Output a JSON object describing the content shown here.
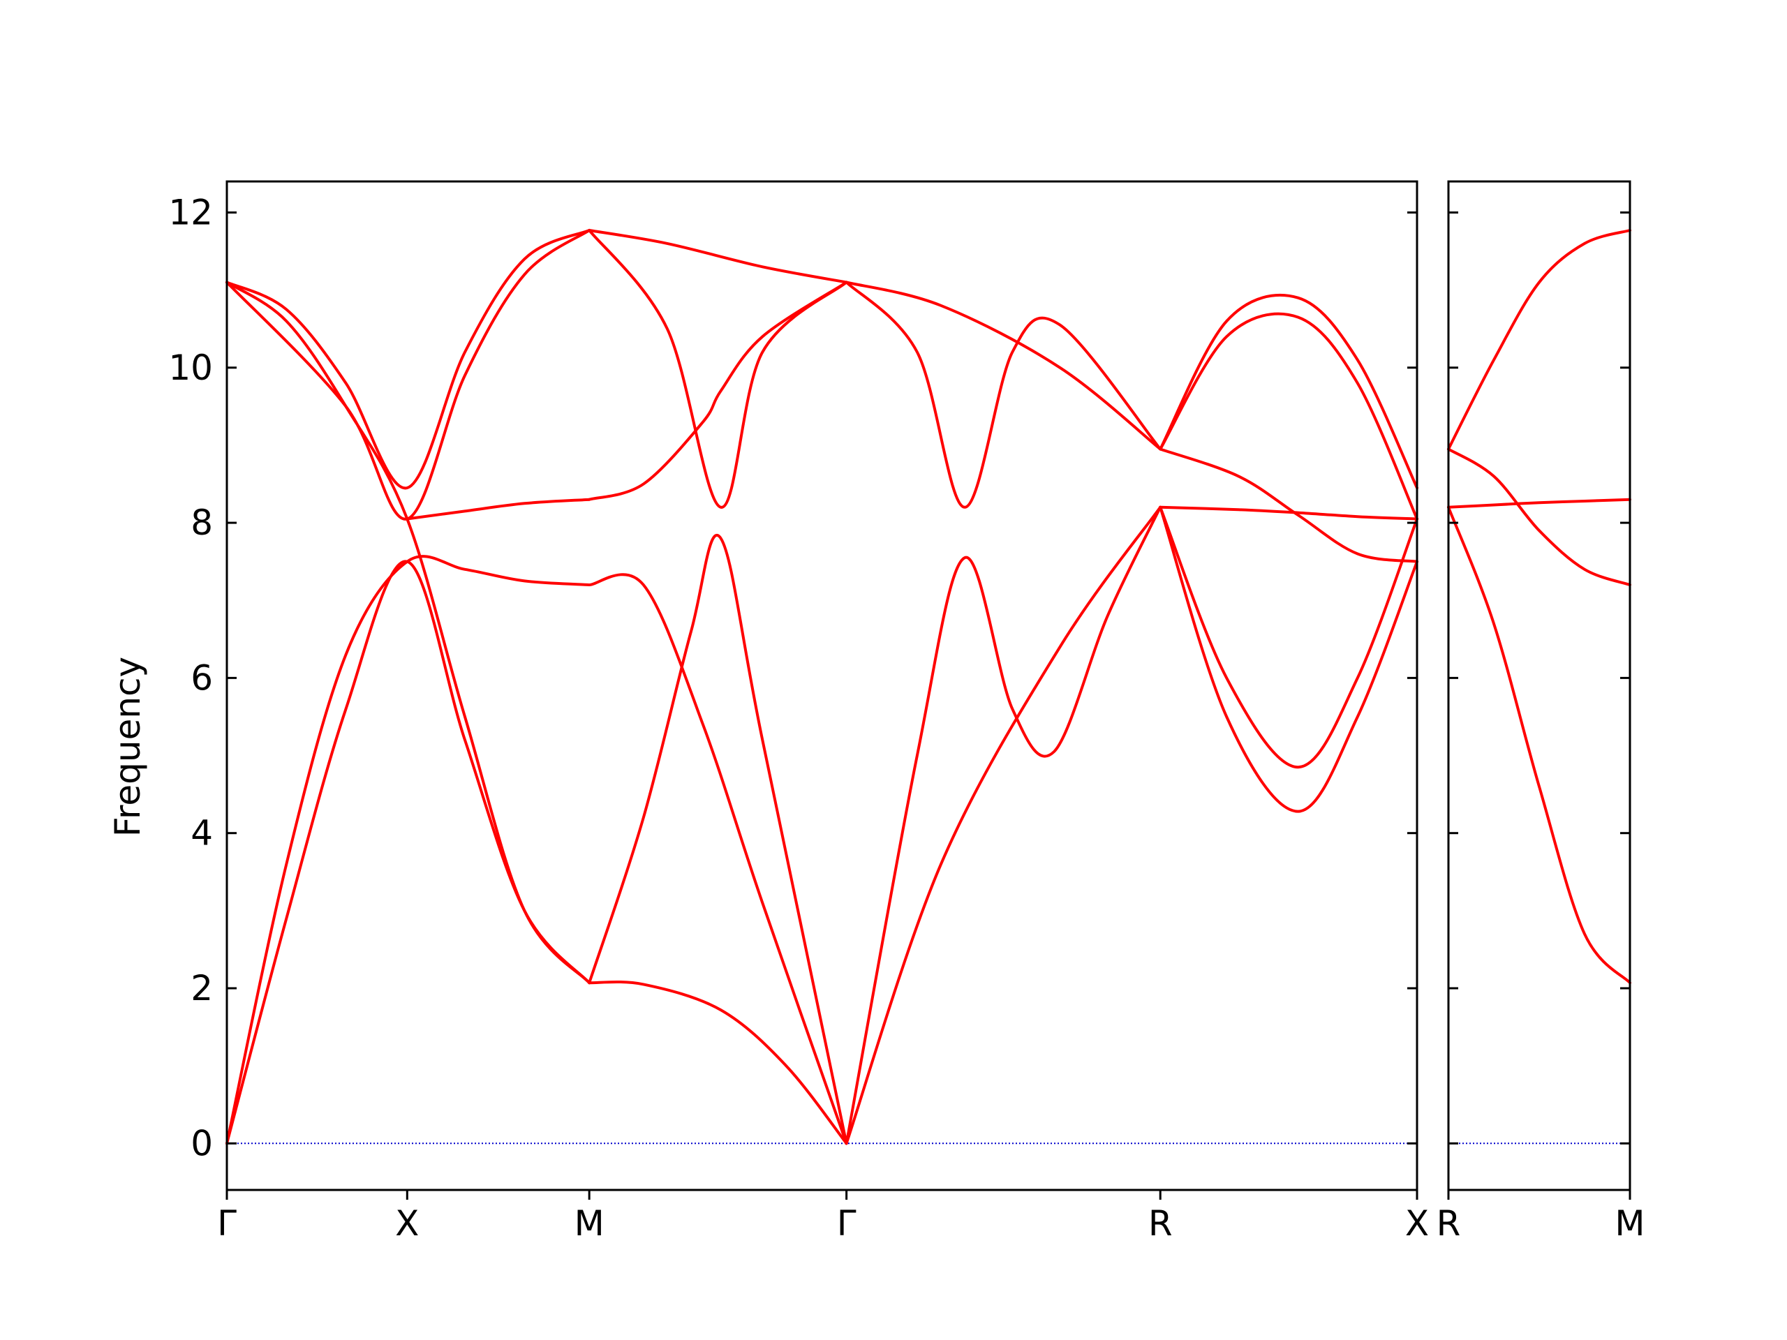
{
  "chart_data": {
    "type": "line",
    "title": "",
    "ylabel": "Frequency",
    "ylim": [
      -0.6,
      12.4
    ],
    "yticks": [
      0,
      2,
      4,
      6,
      8,
      10,
      12
    ],
    "colors": {
      "bands": "#ff0000",
      "zero_line": "#0000cc",
      "axes": "#000000"
    },
    "grid": false,
    "legend": "none",
    "panels": [
      {
        "name": "main",
        "xlim": [
          0,
          1.0
        ],
        "ticks": [
          {
            "x": 0.0,
            "label": "Γ"
          },
          {
            "x": 0.1515,
            "label": "X"
          },
          {
            "x": 0.3045,
            "label": "M"
          },
          {
            "x": 0.5206,
            "label": "Γ"
          },
          {
            "x": 0.7843,
            "label": "R"
          },
          {
            "x": 1.0,
            "label": "X"
          }
        ],
        "series": [
          {
            "x": [
              0,
              0.05,
              0.1,
              0.1515,
              0.2,
              0.25,
              0.3045
            ],
            "y": [
              0,
              3.6,
              6.3,
              7.5,
              7.4,
              7.25,
              7.2
            ]
          },
          {
            "x": [
              0,
              0.05,
              0.1,
              0.1515,
              0.2,
              0.25,
              0.3045
            ],
            "y": [
              0,
              2.9,
              5.6,
              7.5,
              5.2,
              3.0,
              2.07
            ]
          },
          {
            "x": [
              0,
              0.05,
              0.1,
              0.1515,
              0.2,
              0.25,
              0.3045
            ],
            "y": [
              11.1,
              10.6,
              9.5,
              8.05,
              5.5,
              3.0,
              2.07
            ]
          },
          {
            "x": [
              0,
              0.05,
              0.1,
              0.1515,
              0.2,
              0.25,
              0.3045
            ],
            "y": [
              11.1,
              10.75,
              9.8,
              8.45,
              10.2,
              11.4,
              11.77
            ]
          },
          {
            "x": [
              0,
              0.1,
              0.1515,
              0.2,
              0.25,
              0.3045
            ],
            "y": [
              11.1,
              9.5,
              8.05,
              9.9,
              11.2,
              11.77
            ]
          },
          {
            "x": [
              0.1515,
              0.2,
              0.25,
              0.3045
            ],
            "y": [
              8.05,
              8.15,
              8.25,
              8.3
            ]
          },
          {
            "x": [
              0.3045,
              0.35,
              0.415,
              0.47,
              0.5206
            ],
            "y": [
              2.07,
              2.05,
              1.72,
              1.0,
              0
            ]
          },
          {
            "x": [
              0.3045,
              0.35,
              0.4,
              0.45,
              0.5206
            ],
            "y": [
              7.2,
              7.2,
              5.4,
              3.1,
              0
            ]
          },
          {
            "x": [
              0.3045,
              0.35,
              0.39,
              0.415,
              0.45,
              0.5206
            ],
            "y": [
              2.07,
              4.2,
              6.6,
              7.8,
              5.2,
              0
            ]
          },
          {
            "x": [
              0.3045,
              0.35,
              0.4,
              0.415,
              0.45,
              0.5206
            ],
            "y": [
              8.3,
              8.5,
              9.3,
              9.7,
              10.4,
              11.1
            ]
          },
          {
            "x": [
              0.3045,
              0.37,
              0.415,
              0.45,
              0.5206
            ],
            "y": [
              11.77,
              10.5,
              8.2,
              10.2,
              11.1
            ]
          },
          {
            "x": [
              0.3045,
              0.37,
              0.45,
              0.5206
            ],
            "y": [
              11.77,
              11.6,
              11.3,
              11.1
            ]
          },
          {
            "x": [
              0.5206,
              0.6,
              0.7,
              0.7843
            ],
            "y": [
              0,
              3.6,
              6.4,
              8.2
            ]
          },
          {
            "x": [
              0.5206,
              0.58,
              0.62,
              0.66,
              0.695,
              0.74,
              0.7843
            ],
            "y": [
              0,
              5.0,
              7.55,
              5.6,
              5.05,
              6.8,
              8.2
            ]
          },
          {
            "x": [
              0.5206,
              0.58,
              0.62,
              0.66,
              0.7,
              0.7843
            ],
            "y": [
              11.1,
              10.2,
              8.2,
              10.2,
              10.55,
              8.95
            ]
          },
          {
            "x": [
              0.5206,
              0.6,
              0.7,
              0.7843
            ],
            "y": [
              11.1,
              10.8,
              10.0,
              8.95
            ]
          },
          {
            "x": [
              0.7843,
              0.85,
              0.9,
              0.95,
              1.0
            ],
            "y": [
              8.2,
              8.17,
              8.13,
              8.08,
              8.05
            ]
          },
          {
            "x": [
              0.7843,
              0.85,
              0.9,
              0.95,
              1.0
            ],
            "y": [
              8.95,
              8.6,
              8.1,
              7.6,
              7.5
            ]
          },
          {
            "x": [
              0.7843,
              0.84,
              0.9,
              0.95,
              1.0
            ],
            "y": [
              8.2,
              6.0,
              4.85,
              6.0,
              8.05
            ]
          },
          {
            "x": [
              0.7843,
              0.84,
              0.9,
              0.95,
              1.0
            ],
            "y": [
              8.2,
              5.5,
              4.28,
              5.5,
              7.5
            ]
          },
          {
            "x": [
              0.7843,
              0.84,
              0.9,
              0.95,
              1.0
            ],
            "y": [
              8.95,
              10.4,
              10.65,
              9.8,
              8.05
            ]
          },
          {
            "x": [
              0.7843,
              0.84,
              0.9,
              0.95,
              1.0
            ],
            "y": [
              8.95,
              10.6,
              10.9,
              10.1,
              8.45
            ]
          }
        ]
      },
      {
        "name": "side",
        "xlim": [
          0,
          1.0
        ],
        "ticks": [
          {
            "x": 0.0,
            "label": "R"
          },
          {
            "x": 1.0,
            "label": "M"
          }
        ],
        "series": [
          {
            "x": [
              0,
              0.25,
              0.5,
              0.75,
              1.0
            ],
            "y": [
              8.2,
              8.23,
              8.26,
              8.28,
              8.3
            ]
          },
          {
            "x": [
              0,
              0.25,
              0.5,
              0.75,
              1.0
            ],
            "y": [
              8.95,
              8.6,
              7.9,
              7.4,
              7.2
            ]
          },
          {
            "x": [
              0,
              0.25,
              0.5,
              0.75,
              1.0
            ],
            "y": [
              8.2,
              6.7,
              4.6,
              2.7,
              2.07
            ]
          },
          {
            "x": [
              0,
              0.25,
              0.5,
              0.75,
              1.0
            ],
            "y": [
              8.95,
              10.1,
              11.1,
              11.6,
              11.77
            ]
          }
        ]
      }
    ]
  }
}
